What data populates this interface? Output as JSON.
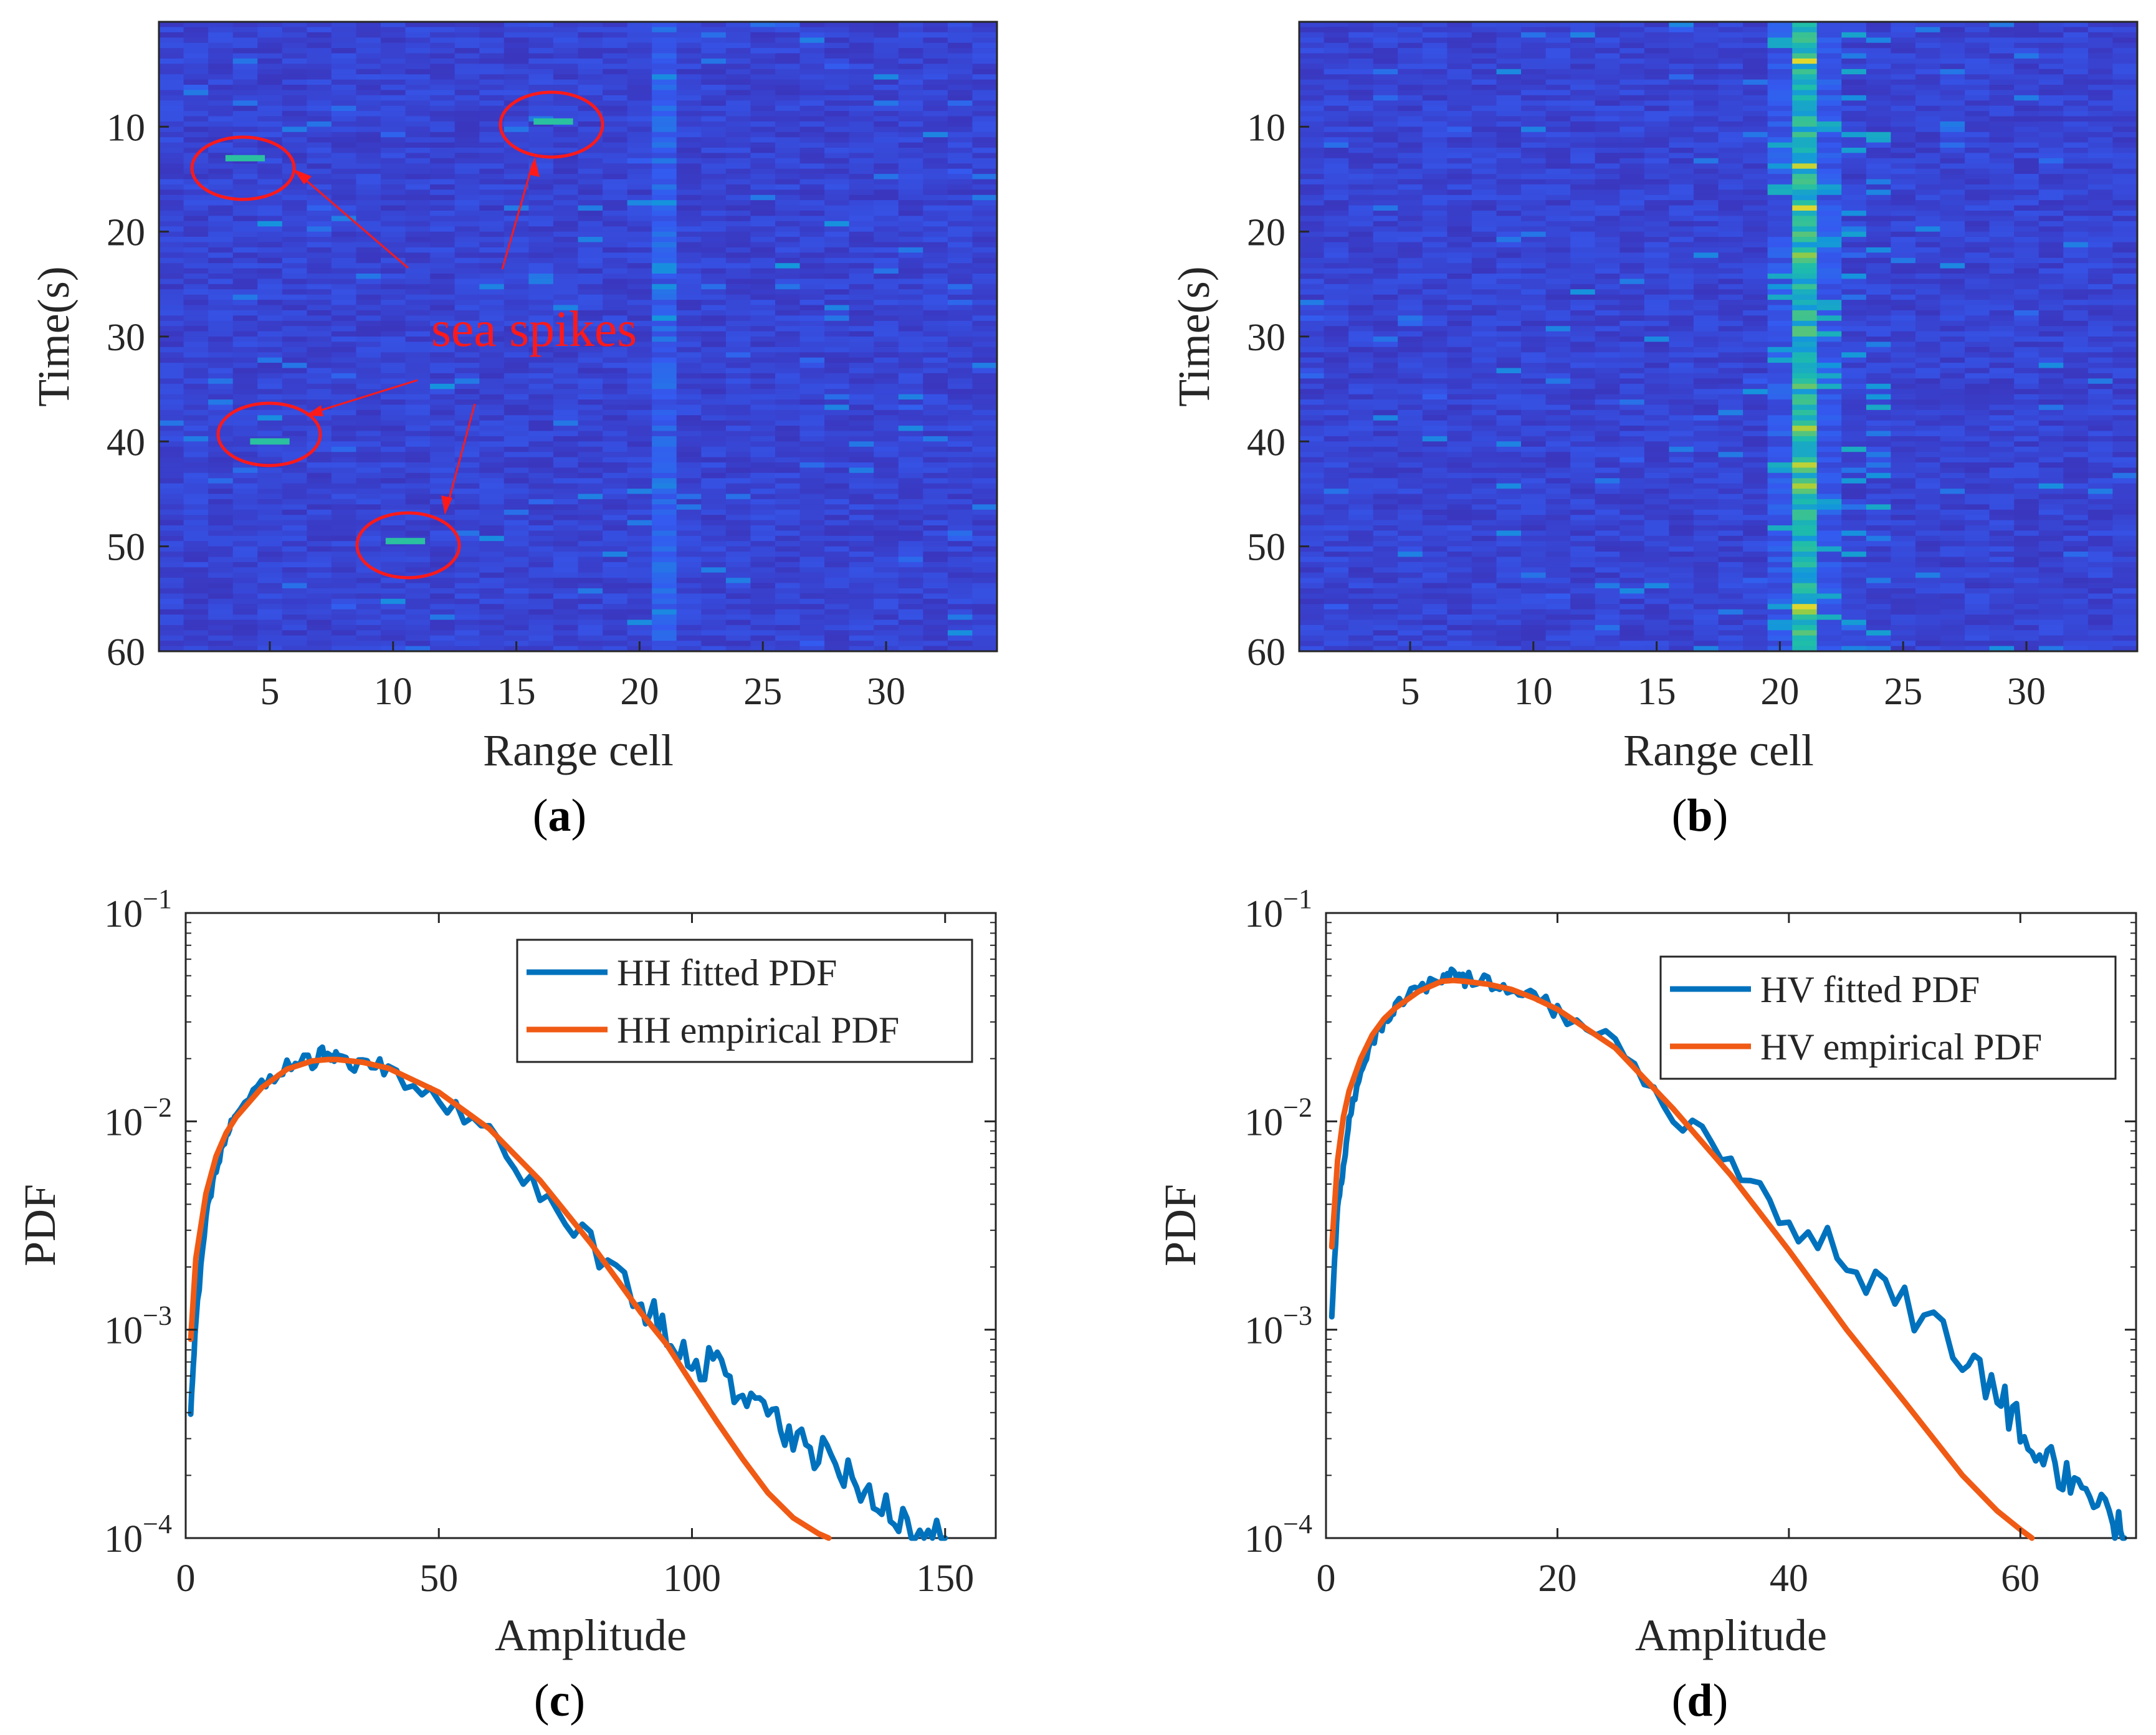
{
  "chart_data": [
    {
      "type": "heatmap",
      "panel_label": "a",
      "xlabel": "Range cell",
      "ylabel": "Time(s)",
      "xlim": [
        0.5,
        34.5
      ],
      "ylim": [
        0,
        60
      ],
      "x_ticks": [
        5,
        10,
        15,
        20,
        25,
        30
      ],
      "y_ticks": [
        10,
        20,
        30,
        40,
        50,
        60
      ],
      "colormap": "parula",
      "colors": {
        "low": "#3d26a8",
        "mid": "#1ab4d6",
        "high": "#b3d62e"
      },
      "target_cell": 21,
      "annotation": {
        "text": "sea spikes",
        "color": "#ff1a1a",
        "circled_spikes": [
          {
            "range_cell": 4,
            "time_s": 13
          },
          {
            "range_cell": 16.5,
            "time_s": 9.5
          },
          {
            "range_cell": 5,
            "time_s": 40
          },
          {
            "range_cell": 10.5,
            "time_s": 49.5
          }
        ]
      }
    },
    {
      "type": "heatmap",
      "panel_label": "b",
      "xlabel": "Range cell",
      "ylabel": "Time(s)",
      "xlim": [
        0.5,
        34.5
      ],
      "ylim": [
        0,
        60
      ],
      "x_ticks": [
        5,
        10,
        15,
        20,
        25,
        30
      ],
      "y_ticks": [
        10,
        20,
        30,
        40,
        50,
        60
      ],
      "colormap": "parula",
      "target_cell": 21
    },
    {
      "type": "line",
      "panel_label": "c",
      "xlabel": "Amplitude",
      "ylabel": "PDF",
      "yscale": "log",
      "xlim": [
        0,
        160
      ],
      "ylim": [
        0.0001,
        0.1
      ],
      "x_ticks": [
        "0",
        "50",
        "100",
        "150"
      ],
      "y_ticks": [
        {
          "base": "10",
          "exp": "−4"
        },
        {
          "base": "10",
          "exp": "−3"
        },
        {
          "base": "10",
          "exp": "−2"
        },
        {
          "base": "10",
          "exp": "−1"
        }
      ],
      "legend_position": "top-right",
      "series": [
        {
          "name": "HH fitted PDF",
          "color": "#0072bd",
          "x": [
            1,
            2,
            4,
            6,
            8,
            10,
            15,
            20,
            25,
            28,
            30,
            35,
            40,
            50,
            60,
            70,
            80,
            90,
            95,
            100,
            105,
            110,
            115,
            120,
            125,
            130,
            135,
            140,
            145,
            150
          ],
          "y": [
            0.0004,
            0.0011,
            0.0035,
            0.006,
            0.0085,
            0.011,
            0.015,
            0.0185,
            0.0195,
            0.022,
            0.0195,
            0.019,
            0.0175,
            0.013,
            0.0085,
            0.0048,
            0.0025,
            0.0013,
            0.001,
            0.0007,
            0.00065,
            0.0005,
            0.0004,
            0.0003,
            0.00025,
            0.0002,
            0.00017,
            0.00012,
            0.0001,
            0.0001
          ]
        },
        {
          "name": "HH empirical PDF",
          "color": "#f05a14",
          "x": [
            1,
            2,
            4,
            6,
            8,
            10,
            15,
            20,
            25,
            28,
            30,
            35,
            40,
            50,
            60,
            70,
            80,
            90,
            95,
            100,
            105,
            110,
            115,
            120,
            125,
            127
          ],
          "y": [
            0.0009,
            0.0022,
            0.0045,
            0.0068,
            0.0088,
            0.0105,
            0.0145,
            0.0178,
            0.0195,
            0.0198,
            0.0198,
            0.0192,
            0.018,
            0.0138,
            0.0092,
            0.0052,
            0.0026,
            0.0012,
            0.00085,
            0.00055,
            0.00036,
            0.00024,
            0.000165,
            0.000125,
            0.000105,
            0.0001
          ]
        }
      ]
    },
    {
      "type": "line",
      "panel_label": "d",
      "xlabel": "Amplitude",
      "ylabel": "PDF",
      "yscale": "log",
      "xlim": [
        0,
        70
      ],
      "ylim": [
        0.0001,
        0.1
      ],
      "x_ticks": [
        "0",
        "20",
        "40",
        "60"
      ],
      "y_ticks": [
        {
          "base": "10",
          "exp": "−4"
        },
        {
          "base": "10",
          "exp": "−3"
        },
        {
          "base": "10",
          "exp": "−2"
        },
        {
          "base": "10",
          "exp": "−1"
        }
      ],
      "legend_position": "top-right",
      "series": [
        {
          "name": "HV fitted PDF",
          "color": "#0072bd",
          "x": [
            0.5,
            1,
            1.5,
            2,
            3,
            4,
            5,
            6,
            8,
            10,
            11,
            12,
            14,
            16,
            18,
            20,
            25,
            30,
            35,
            40,
            45,
            50,
            55,
            58,
            60,
            62,
            64,
            66,
            68,
            69
          ],
          "y": [
            0.0012,
            0.004,
            0.006,
            0.01,
            0.018,
            0.024,
            0.03,
            0.036,
            0.043,
            0.05,
            0.054,
            0.048,
            0.046,
            0.044,
            0.04,
            0.035,
            0.022,
            0.011,
            0.006,
            0.0034,
            0.0022,
            0.0013,
            0.00075,
            0.0005,
            0.00035,
            0.00025,
            0.0002,
            0.00015,
            0.00012,
            0.0001
          ]
        },
        {
          "name": "HV empirical PDF",
          "color": "#f05a14",
          "x": [
            0.5,
            1,
            1.5,
            2,
            3,
            4,
            5,
            6,
            8,
            10,
            11,
            12,
            14,
            16,
            18,
            20,
            25,
            30,
            35,
            40,
            45,
            50,
            55,
            58,
            60,
            61
          ],
          "y": [
            0.0025,
            0.0065,
            0.0105,
            0.014,
            0.02,
            0.026,
            0.031,
            0.035,
            0.042,
            0.047,
            0.0475,
            0.047,
            0.0455,
            0.043,
            0.039,
            0.0345,
            0.0225,
            0.0115,
            0.0055,
            0.0024,
            0.001,
            0.00045,
            0.0002,
            0.000135,
            0.00011,
            0.0001
          ]
        }
      ]
    }
  ]
}
